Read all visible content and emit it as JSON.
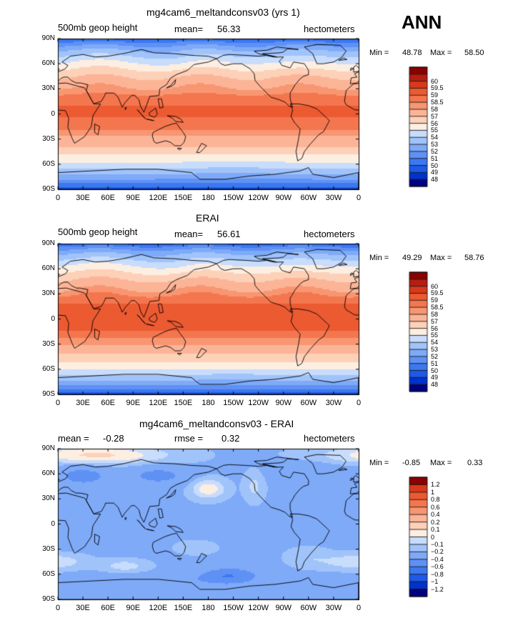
{
  "season": "ANN",
  "colors": {
    "abs": [
      "#000080",
      "#0033cc",
      "#1e5ae6",
      "#3c78f0",
      "#5f91f5",
      "#7eaaf8",
      "#a0c3fa",
      "#c8dcfb",
      "#fdeee2",
      "#fdd0b8",
      "#fcb497",
      "#f89672",
      "#f4764e",
      "#ec5a32",
      "#d73a1b",
      "#b51e10",
      "#8b0000"
    ],
    "diff": [
      "#000080",
      "#0033cc",
      "#1e5ae6",
      "#3c78f0",
      "#5f91f5",
      "#7eaaf8",
      "#a0c3fa",
      "#c8dcfb",
      "#fdeee2",
      "#fdd0b8",
      "#fcb497",
      "#f89672",
      "#f4764e",
      "#ec5a32",
      "#d73a1b",
      "#8b0000"
    ],
    "coast": "#000000"
  },
  "chart_data": [
    {
      "type": "heatmap",
      "title": "mg4cam6_meltandconsv03 (yrs 1)",
      "left_label": "500mb geop height",
      "stat1_label": "mean=",
      "stat1_value": "56.33",
      "units": "hectometers",
      "min_label": "Min =",
      "min_value": "48.78",
      "max_label": "Max =",
      "max_value": "58.50",
      "field": "abs",
      "levels": [
        48,
        49,
        50,
        51,
        52,
        53,
        54,
        55,
        56,
        57,
        58,
        58.5,
        59,
        59.5,
        60
      ],
      "level_labels": [
        "48",
        "49",
        "50",
        "51",
        "52",
        "53",
        "54",
        "55",
        "56",
        "57",
        "58",
        "58.5",
        "59",
        "59.5",
        "60"
      ],
      "xticks": [
        "0",
        "30E",
        "60E",
        "90E",
        "120E",
        "150E",
        "180",
        "150W",
        "120W",
        "90W",
        "60W",
        "30W",
        "0"
      ],
      "yticks": [
        "90N",
        "60N",
        "30N",
        "0",
        "30S",
        "60S",
        "90S"
      ],
      "xlim": [
        0,
        360
      ],
      "ylim": [
        -90,
        90
      ]
    },
    {
      "type": "heatmap",
      "title": "ERAI",
      "left_label": "500mb geop height",
      "stat1_label": "mean=",
      "stat1_value": "56.61",
      "units": "hectometers",
      "min_label": "Min =",
      "min_value": "49.29",
      "max_label": "Max =",
      "max_value": "58.76",
      "field": "abs",
      "levels": [
        48,
        49,
        50,
        51,
        52,
        53,
        54,
        55,
        56,
        57,
        58,
        58.5,
        59,
        59.5,
        60
      ],
      "level_labels": [
        "48",
        "49",
        "50",
        "51",
        "52",
        "53",
        "54",
        "55",
        "56",
        "57",
        "58",
        "58.5",
        "59",
        "59.5",
        "60"
      ],
      "xticks": [
        "0",
        "30E",
        "60E",
        "90E",
        "120E",
        "150E",
        "180",
        "150W",
        "120W",
        "90W",
        "60W",
        "30W",
        "0"
      ],
      "yticks": [
        "90N",
        "60N",
        "30N",
        "0",
        "30S",
        "60S",
        "90S"
      ],
      "xlim": [
        0,
        360
      ],
      "ylim": [
        -90,
        90
      ]
    },
    {
      "type": "heatmap",
      "title": "mg4cam6_meltandconsv03 - ERAI",
      "left_label": "mean =",
      "left_value": "-0.28",
      "stat1_label": "rmse =",
      "stat1_value": "0.32",
      "units": "hectometers",
      "min_label": "Min =",
      "min_value": "-0.85",
      "max_label": "Max =",
      "max_value": "0.33",
      "field": "diff",
      "levels": [
        -1.2,
        -1,
        -0.8,
        -0.6,
        -0.4,
        -0.2,
        -0.1,
        0,
        0.1,
        0.2,
        0.4,
        0.6,
        0.8,
        1,
        1.2
      ],
      "level_labels": [
        "-1.2",
        "-1",
        "-0.8",
        "-0.6",
        "-0.4",
        "-0.2",
        "-0.1",
        "0",
        "0.1",
        "0.2",
        "0.4",
        "0.6",
        "0.8",
        "1",
        "1.2"
      ],
      "xticks": [
        "0",
        "30E",
        "60E",
        "90E",
        "120E",
        "150E",
        "180",
        "150W",
        "120W",
        "90W",
        "60W",
        "30W",
        "0"
      ],
      "yticks": [
        "90N",
        "60N",
        "30N",
        "0",
        "30S",
        "60S",
        "90S"
      ],
      "xlim": [
        0,
        360
      ],
      "ylim": [
        -90,
        90
      ]
    }
  ]
}
